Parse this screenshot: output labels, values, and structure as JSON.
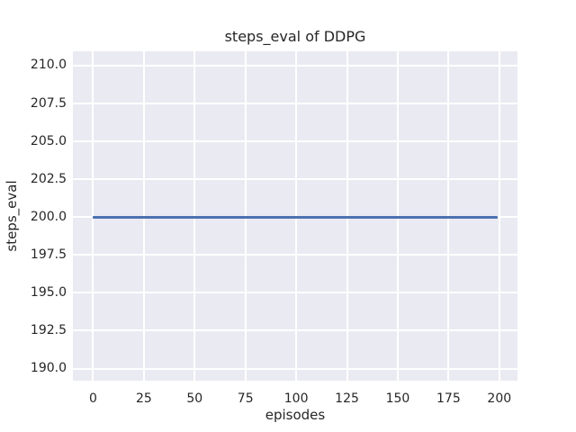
{
  "figure": {
    "background": "#ffffff",
    "text_color": "#262626"
  },
  "chart_data": {
    "type": "line",
    "title": "steps_eval of DDPG",
    "xlabel": "episodes",
    "ylabel": "steps_eval",
    "grid": true,
    "legend": false,
    "plot_background": "#EAEAF2",
    "grid_color": "#FFFFFF",
    "xlim": [
      -9.95,
      208.95
    ],
    "ylim": [
      189.2,
      210.95
    ],
    "x_tick_values": [
      0,
      25,
      50,
      75,
      100,
      125,
      150,
      175,
      200
    ],
    "x_tick_labels": [
      "0",
      "25",
      "50",
      "75",
      "100",
      "125",
      "150",
      "175",
      "200"
    ],
    "y_tick_values": [
      190.0,
      192.5,
      195.0,
      197.5,
      200.0,
      202.5,
      205.0,
      207.5,
      210.0
    ],
    "y_tick_labels": [
      "190.0",
      "192.5",
      "195.0",
      "197.5",
      "200.0",
      "202.5",
      "205.0",
      "207.5",
      "210.0"
    ],
    "series": [
      {
        "name": "steps_eval",
        "color": "#4C72B0",
        "x": [
          0,
          199
        ],
        "y": [
          200,
          200
        ],
        "note": "constant value 200 for all 200 evaluation episodes"
      }
    ]
  }
}
